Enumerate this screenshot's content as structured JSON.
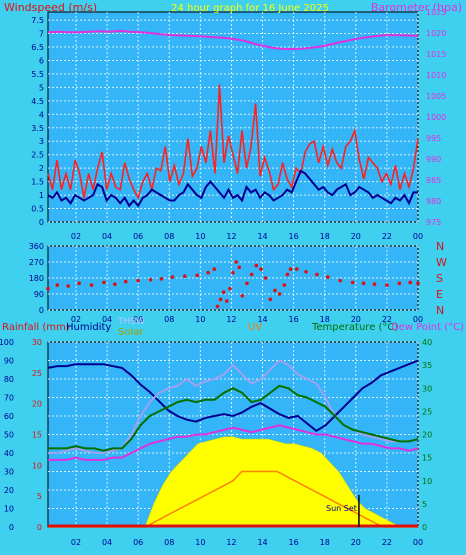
{
  "chart_data": [
    {
      "type": "line",
      "title": "24 hour graph for 16 June 2025",
      "left_axis_label": "Windspeed (m/s)",
      "right_axis_label": "Barometer (hpa)",
      "left_ticks": [
        "0",
        "0.5",
        "1",
        "1.5",
        "2",
        "2.5",
        "3",
        "3.5",
        "4",
        "4.5",
        "5",
        "5.5",
        "6",
        "6.5",
        "7",
        "7.5"
      ],
      "right_ticks": [
        "975",
        "980",
        "985",
        "990",
        "995",
        "1000",
        "1005",
        "1010",
        "1015",
        "1020",
        "1025"
      ],
      "ylim_left": [
        0,
        7.8
      ],
      "ylim_right": [
        975,
        1025
      ],
      "series": [
        {
          "name": "Wind Gust",
          "axis": "left",
          "color": "#ff2020",
          "values": [
            1.8,
            1.2,
            2.3,
            1.2,
            1.8,
            1.2,
            2.3,
            1.8,
            0.9,
            1.8,
            1.2,
            2.0,
            2.6,
            1.2,
            1.8,
            1.3,
            1.2,
            2.2,
            1.6,
            1.2,
            0.9,
            1.5,
            1.8,
            1.2,
            2.0,
            1.9,
            2.8,
            1.5,
            2.1,
            1.4,
            1.8,
            3.1,
            1.7,
            2.0,
            2.8,
            2.2,
            3.4,
            1.8,
            5.1,
            2.2,
            3.2,
            2.5,
            1.8,
            3.4,
            2.0,
            2.8,
            4.4,
            1.7,
            2.4,
            1.9,
            1.2,
            1.4,
            2.2,
            1.6,
            1.3,
            2.0,
            1.8,
            2.6,
            2.9,
            3.0,
            2.2,
            2.8,
            2.1,
            2.7,
            2.2,
            2.0,
            2.8,
            3.0,
            3.4,
            2.3,
            1.6,
            2.4,
            2.2,
            2.0,
            1.5,
            1.8,
            1.4,
            2.1,
            1.2,
            1.8,
            1.3,
            2.0,
            3.1
          ]
        },
        {
          "name": "Wind Speed",
          "axis": "left",
          "color": "#000090",
          "values": [
            1.0,
            0.9,
            1.1,
            0.8,
            0.9,
            0.7,
            1.0,
            0.9,
            0.8,
            0.9,
            1.0,
            1.4,
            1.3,
            0.8,
            1.0,
            0.9,
            0.7,
            0.9,
            0.6,
            0.8,
            0.6,
            0.9,
            1.0,
            1.2,
            1.1,
            1.0,
            0.9,
            0.8,
            0.8,
            1.0,
            1.1,
            1.4,
            1.2,
            1.0,
            0.9,
            1.3,
            1.5,
            1.3,
            1.1,
            0.9,
            1.2,
            0.9,
            1.0,
            0.8,
            1.3,
            1.1,
            1.2,
            0.9,
            1.1,
            1.0,
            0.8,
            0.9,
            1.0,
            1.2,
            1.1,
            1.5,
            1.9,
            1.8,
            1.6,
            1.4,
            1.2,
            1.3,
            1.1,
            1.0,
            1.2,
            1.3,
            1.4,
            1.0,
            1.1,
            1.3,
            1.2,
            1.1,
            0.9,
            1.0,
            0.9,
            0.8,
            0.7,
            0.9,
            0.8,
            1.0,
            0.7,
            1.1,
            1.1
          ]
        },
        {
          "name": "Barometer",
          "axis": "right",
          "color": "#e030e0",
          "values": [
            1020.2,
            1020.3,
            1020.2,
            1020.2,
            1020.3,
            1020.4,
            1020.3,
            1020.5,
            1020.3,
            1020.2,
            1020.0,
            1019.7,
            1019.5,
            1019.4,
            1019.3,
            1019.2,
            1019.0,
            1018.9,
            1018.6,
            1018.2,
            1017.5,
            1016.9,
            1016.4,
            1016.2,
            1016.2,
            1016.3,
            1016.6,
            1017.0,
            1017.6,
            1018.1,
            1018.6,
            1019.0,
            1019.3,
            1019.5,
            1019.5,
            1019.4,
            1019.3
          ]
        }
      ],
      "x_ticks": [
        "02",
        "04",
        "06",
        "08",
        "10",
        "12",
        "14",
        "16",
        "18",
        "20",
        "22",
        "00"
      ]
    },
    {
      "type": "scatter",
      "title": "",
      "right_labels": [
        "N",
        "W",
        "S",
        "E",
        "N"
      ],
      "left_ticks": [
        "0",
        "90",
        "180",
        "270",
        "360"
      ],
      "ylim": [
        0,
        360
      ],
      "series": [
        {
          "name": "Wind Direction",
          "color": "#e01010",
          "points": [
            [
              0.2,
              120
            ],
            [
              0.8,
              140
            ],
            [
              1.5,
              135
            ],
            [
              2.2,
              150
            ],
            [
              3.0,
              140
            ],
            [
              3.8,
              155
            ],
            [
              4.5,
              145
            ],
            [
              5.2,
              160
            ],
            [
              6.0,
              165
            ],
            [
              6.8,
              170
            ],
            [
              7.5,
              175
            ],
            [
              8.2,
              185
            ],
            [
              9.0,
              190
            ],
            [
              9.8,
              195
            ],
            [
              10.5,
              210
            ],
            [
              10.9,
              230
            ],
            [
              11.1,
              20
            ],
            [
              11.3,
              60
            ],
            [
              11.5,
              100
            ],
            [
              11.7,
              50
            ],
            [
              11.9,
              120
            ],
            [
              12.1,
              210
            ],
            [
              12.3,
              270
            ],
            [
              12.5,
              240
            ],
            [
              12.7,
              80
            ],
            [
              13.0,
              150
            ],
            [
              13.3,
              200
            ],
            [
              13.6,
              250
            ],
            [
              13.9,
              230
            ],
            [
              14.2,
              180
            ],
            [
              14.5,
              60
            ],
            [
              14.8,
              110
            ],
            [
              15.1,
              90
            ],
            [
              15.4,
              140
            ],
            [
              15.6,
              200
            ],
            [
              15.8,
              230
            ],
            [
              16.2,
              230
            ],
            [
              16.8,
              215
            ],
            [
              17.5,
              200
            ],
            [
              18.2,
              185
            ],
            [
              19.0,
              165
            ],
            [
              19.8,
              155
            ],
            [
              20.5,
              150
            ],
            [
              21.2,
              145
            ],
            [
              22.0,
              140
            ],
            [
              22.8,
              150
            ],
            [
              23.5,
              155
            ],
            [
              24.0,
              150
            ]
          ]
        }
      ],
      "x_ticks": [
        "02",
        "04",
        "06",
        "08",
        "10",
        "12",
        "14",
        "16",
        "18",
        "20",
        "22",
        "00"
      ]
    },
    {
      "type": "area",
      "title": "",
      "labels": {
        "rainfall": "Rainfall (mm)",
        "humidity": "Humidity",
        "thsw": "THSW",
        "solar": "Solar",
        "uv": "UV",
        "temperature": "Temperature (°C)",
        "dewpoint": "Dew Point (°C)",
        "sunset": "Sun Set"
      },
      "left_ticks_humidity": [
        "0",
        "10",
        "20",
        "30",
        "40",
        "50",
        "60",
        "70",
        "80",
        "90",
        "100"
      ],
      "left_ticks_rain": [
        "0",
        "5",
        "10",
        "15",
        "20",
        "25",
        "30"
      ],
      "right_ticks": [
        "0",
        "5",
        "10",
        "15",
        "20",
        "25",
        "30",
        "35",
        "40"
      ],
      "ylim_left": [
        0,
        100
      ],
      "ylim_right": [
        0,
        40
      ],
      "series": [
        {
          "name": "Humidity",
          "axis": "left",
          "color": "#000090",
          "values": [
            86,
            87,
            87,
            88,
            88,
            88,
            88,
            87,
            86,
            82,
            77,
            73,
            68,
            63,
            60,
            58,
            57,
            59,
            60,
            61,
            60,
            62,
            65,
            67,
            64,
            61,
            59,
            60,
            56,
            52,
            55,
            60,
            65,
            70,
            75,
            78,
            82,
            84,
            86,
            88,
            90
          ]
        },
        {
          "name": "Temperature",
          "axis": "right",
          "color": "#007000",
          "values": [
            17,
            17,
            17,
            17.5,
            17,
            17,
            16.5,
            17,
            17,
            19,
            22,
            24,
            25,
            26,
            27,
            27.5,
            27,
            27.5,
            27.5,
            29,
            30,
            29,
            27,
            27.5,
            29,
            30.5,
            30,
            28.5,
            28,
            27,
            26,
            24,
            22,
            21,
            20.5,
            20,
            19.5,
            19,
            18.5,
            18.5,
            19
          ]
        },
        {
          "name": "THSW",
          "axis": "right",
          "color": "#a0a0f0",
          "values": [
            16,
            16,
            16.5,
            17,
            16.5,
            16,
            16,
            16.5,
            17,
            20,
            24,
            27,
            29,
            30,
            30.5,
            32,
            30.5,
            31.5,
            32,
            33,
            35,
            33,
            31,
            32,
            34,
            36,
            35,
            33,
            32,
            31,
            28,
            24,
            22,
            21,
            20,
            19.5,
            19,
            18.5,
            18.5,
            18.5,
            19
          ]
        },
        {
          "name": "Dew Point",
          "axis": "right",
          "color": "#e030e0",
          "values": [
            14.5,
            14.5,
            14.5,
            15,
            14.5,
            14.5,
            14.5,
            15,
            15,
            16,
            17,
            18,
            18.5,
            19,
            19.5,
            19.5,
            20,
            20,
            20.5,
            21,
            21.5,
            21,
            20.5,
            21,
            21.5,
            22,
            21.5,
            21,
            20.5,
            20,
            20,
            19.5,
            19,
            18.5,
            18,
            18,
            17.5,
            17,
            17,
            16.5,
            17
          ]
        },
        {
          "name": "Solar",
          "axis": "right",
          "color": "#ffff00",
          "values": [
            0,
            0,
            0,
            0,
            0,
            0,
            0,
            0,
            0,
            0,
            0,
            0,
            5,
            9,
            12,
            14,
            16,
            18,
            18.5,
            19,
            19.5,
            19.5,
            19,
            19,
            19,
            19,
            18.5,
            18,
            18,
            17.5,
            17,
            16,
            14,
            12,
            9,
            6,
            4,
            3,
            2,
            1,
            0,
            0,
            0
          ]
        },
        {
          "name": "UV",
          "axis": "right",
          "color": "#ff8000",
          "values": [
            0,
            0,
            0,
            0,
            0,
            0,
            0,
            0,
            0,
            0,
            0,
            0,
            1,
            2,
            3,
            4,
            5,
            6,
            7,
            8,
            9,
            10,
            12,
            12,
            12,
            12,
            12,
            11,
            10,
            9,
            8,
            7,
            6,
            5,
            4,
            3,
            2,
            1,
            0,
            0,
            0,
            0,
            0
          ]
        },
        {
          "name": "Rainfall",
          "axis": "left",
          "color": "#e01010",
          "values": [
            0,
            0,
            0,
            0,
            0,
            0,
            0,
            0,
            0,
            0,
            0,
            0,
            0,
            0,
            0,
            0,
            0,
            0,
            0,
            0,
            0,
            0,
            0,
            0,
            0,
            0,
            0,
            0,
            0,
            0,
            0,
            0,
            0,
            0,
            0,
            0,
            0,
            0,
            0,
            0,
            0
          ]
        }
      ],
      "x_ticks": [
        "02",
        "04",
        "06",
        "08",
        "10",
        "12",
        "14",
        "16",
        "18",
        "20",
        "22",
        "00"
      ]
    }
  ]
}
